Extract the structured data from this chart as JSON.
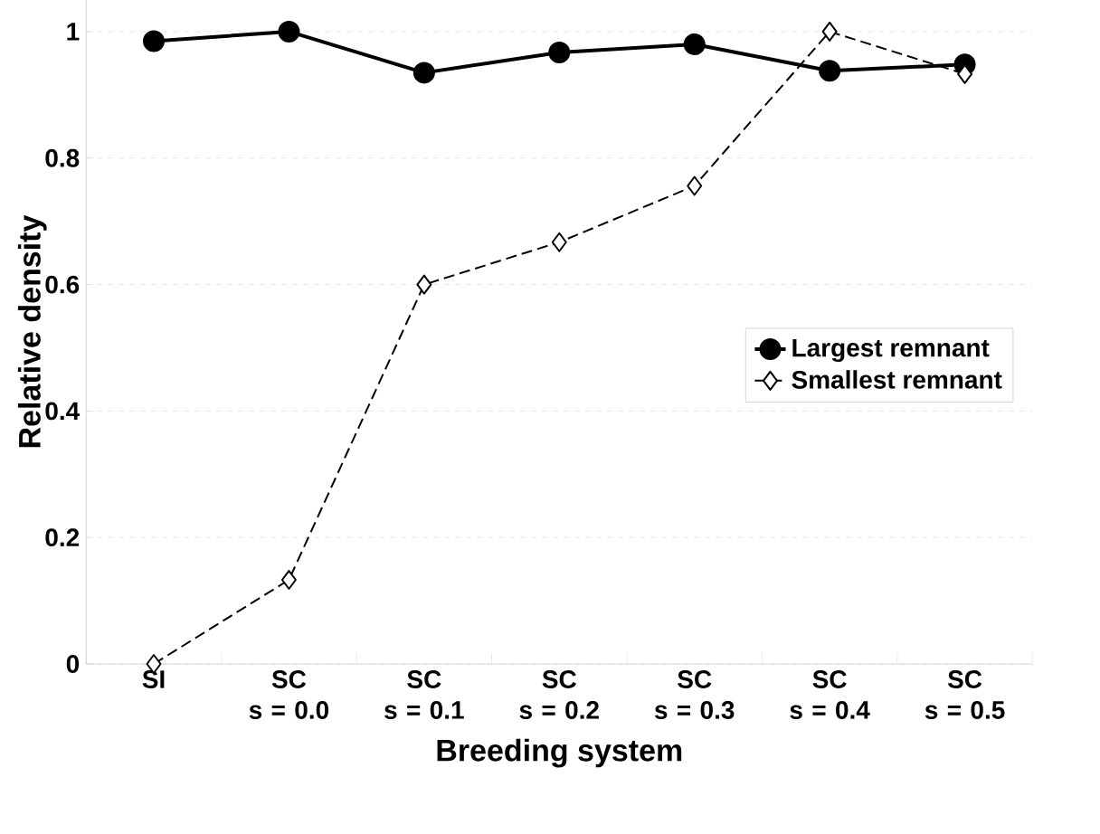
{
  "chart_data": {
    "type": "line",
    "xlabel": "Breeding system",
    "ylabel": "Relative density",
    "categories": [
      "SI",
      "SC s = 0.0",
      "SC s = 0.1",
      "SC s = 0.2",
      "SC s = 0.3",
      "SC s = 0.4",
      "SC s = 0.5"
    ],
    "series": [
      {
        "name": "Largest remnant",
        "color": "#000000",
        "values": [
          0.985,
          1.0,
          0.935,
          0.967,
          0.98,
          0.938,
          0.948
        ],
        "marker": "circle",
        "line_style": "solid"
      },
      {
        "name": "Smallest remnant",
        "color": "#000000",
        "values": [
          0,
          0.133,
          0.6,
          0.667,
          0.756,
          1.0,
          0.933
        ],
        "marker": "diamond",
        "line_style": "dashed"
      }
    ],
    "ylim": [
      0,
      1.05
    ],
    "yticks": [
      0,
      0.2,
      0.4,
      0.6,
      0.8,
      1
    ],
    "grid": "y",
    "legend": "right"
  }
}
